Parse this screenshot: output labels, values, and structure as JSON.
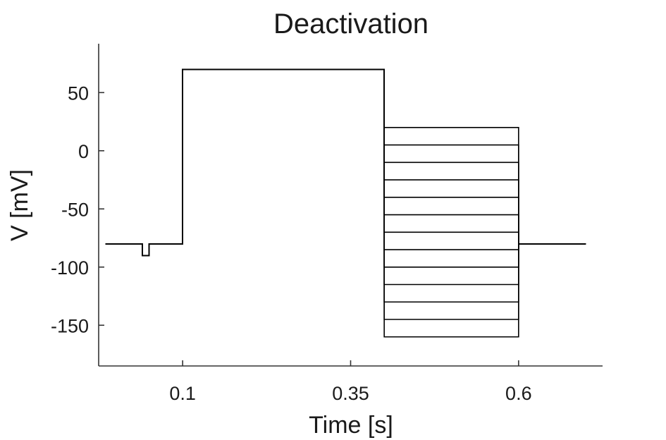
{
  "chart_data": {
    "type": "line",
    "title": "Deactivation",
    "xlabel": "Time [s]",
    "ylabel": "V [mV]",
    "xlim": [
      -0.025,
      0.725
    ],
    "ylim": [
      -185,
      92
    ],
    "x_ticks": [
      0.1,
      0.35,
      0.6
    ],
    "x_tick_labels": [
      "0.1",
      "0.35",
      "0.6"
    ],
    "y_ticks": [
      50,
      0,
      -50,
      -100,
      -150
    ],
    "y_tick_labels": [
      "50",
      "0",
      "-50",
      "-100",
      "-150"
    ],
    "grid": false,
    "line_color": "#000000",
    "protocol": {
      "holding_mV": -80,
      "test_pulse": {
        "start_s": 0.04,
        "end_s": 0.05,
        "level_mV": -90
      },
      "activation": {
        "start_s": 0.1,
        "end_s": 0.4,
        "level_mV": 70
      },
      "step_window": {
        "start_s": 0.4,
        "end_s": 0.6
      },
      "step_levels_mV": [
        20,
        5,
        -10,
        -25,
        -40,
        -55,
        -70,
        -85,
        -100,
        -115,
        -130,
        -145,
        -160
      ],
      "trace_end_s": 0.7
    }
  }
}
